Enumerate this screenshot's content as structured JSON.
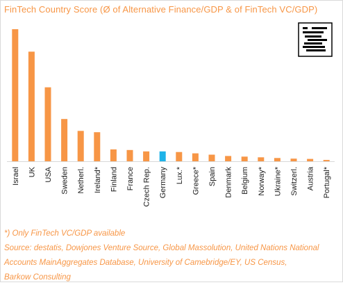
{
  "colors": {
    "title": "#f79646",
    "bar": "#f79646",
    "highlight": "#1fb3e8",
    "notes": "#f79646",
    "axis": "#d9d9d9"
  },
  "logo": {
    "icon": "barkow-consulting-logo-icon"
  },
  "notes": {
    "footnote": "*) Only FinTech VC/GDP available",
    "source_line1": "Source: destatis, Dowjones Venture Source, Global Massolution, United Nations National",
    "source_line2": "Accounts MainAggregates Database, University of Camebridge/EY, US Census,",
    "source_line3": "Barkow Consulting"
  },
  "chart_data": {
    "type": "bar",
    "title": "FinTech Country Score (Ø of Alternative Finance/GDP & of FinTech VC/GDP)",
    "xlabel": "",
    "ylabel": "",
    "grid": false,
    "legend": "none",
    "y_axis_labels": false,
    "ylim": [
      0,
      100
    ],
    "categories": [
      "Israel",
      "UK",
      "USA",
      "Sweden",
      "Netherl.",
      "Ireland*",
      "Finland",
      "France",
      "Czech Rep.",
      "Germany",
      "Lux.*",
      "Greece*",
      "Spain",
      "Denmark",
      "Belgium",
      "Norway*",
      "Ukraine*",
      "Switzerl.",
      "Austria",
      "Portugal*"
    ],
    "values": [
      100,
      83,
      56,
      32,
      23,
      22,
      9,
      8.5,
      7.5,
      7.5,
      7,
      6,
      5,
      4,
      3.5,
      3,
      2.5,
      2,
      1.8,
      1
    ],
    "highlight_category": "Germany"
  }
}
